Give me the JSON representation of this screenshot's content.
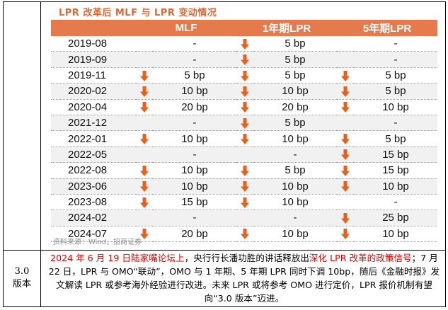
{
  "chart_title": "LPR 改革后 MLF 与 LPR 变动情况",
  "table": {
    "headers": [
      "",
      "MLF",
      "1年期LPR",
      "5年期LPR"
    ],
    "rows": [
      {
        "date": "2019-08",
        "mlf": "-",
        "mlf_down": false,
        "lpr1": "5 bp",
        "lpr1_down": true,
        "lpr5": "-",
        "lpr5_down": false
      },
      {
        "date": "2019-09",
        "mlf": "-",
        "mlf_down": false,
        "lpr1": "5 bp",
        "lpr1_down": true,
        "lpr5": "-",
        "lpr5_down": false
      },
      {
        "date": "2019-11",
        "mlf": "5 bp",
        "mlf_down": true,
        "lpr1": "5 bp",
        "lpr1_down": true,
        "lpr5": "5 bp",
        "lpr5_down": true
      },
      {
        "date": "2020-02",
        "mlf": "10 bp",
        "mlf_down": true,
        "lpr1": "10 bp",
        "lpr1_down": true,
        "lpr5": "5 bp",
        "lpr5_down": true
      },
      {
        "date": "2020-04",
        "mlf": "20 bp",
        "mlf_down": true,
        "lpr1": "20 bp",
        "lpr1_down": true,
        "lpr5": "10 bp",
        "lpr5_down": true
      },
      {
        "date": "2021-12",
        "mlf": "-",
        "mlf_down": false,
        "lpr1": "5 bp",
        "lpr1_down": true,
        "lpr5": "-",
        "lpr5_down": false
      },
      {
        "date": "2022-01",
        "mlf": "10 bp",
        "mlf_down": true,
        "lpr1": "10 bp",
        "lpr1_down": true,
        "lpr5": "5 bp",
        "lpr5_down": true
      },
      {
        "date": "2022-05",
        "mlf": "-",
        "mlf_down": false,
        "lpr1": "-",
        "lpr1_down": false,
        "lpr5": "15 bp",
        "lpr5_down": true
      },
      {
        "date": "2022-08",
        "mlf": "10 bp",
        "mlf_down": true,
        "lpr1": "5 bp",
        "lpr1_down": true,
        "lpr5": "15 bp",
        "lpr5_down": true
      },
      {
        "date": "2023-06",
        "mlf": "10 bp",
        "mlf_down": true,
        "lpr1": "10 bp",
        "lpr1_down": true,
        "lpr5": "10 bp",
        "lpr5_down": true
      },
      {
        "date": "2023-08",
        "mlf": "15 bp",
        "mlf_down": true,
        "lpr1": "10 bp",
        "lpr1_down": true,
        "lpr5": "-",
        "lpr5_down": false
      },
      {
        "date": "2024-02",
        "mlf": "-",
        "mlf_down": false,
        "lpr1": "-",
        "lpr1_down": false,
        "lpr5": "25 bp",
        "lpr5_down": true
      },
      {
        "date": "2024-07",
        "mlf": "20 bp",
        "mlf_down": true,
        "lpr1": "10 bp",
        "lpr1_down": true,
        "lpr5": "10 bp",
        "lpr5_down": true
      }
    ]
  },
  "source": "资料来源：Wind，招商证券",
  "version_label_line1": "3.0",
  "version_label_line2": "版本",
  "description": {
    "red_part1": "2024 年 6 月 19 日陆家嘴论坛上",
    "black_part1": "，央行行长潘功胜的讲话释放出",
    "red_part2": "深化 LPR 改革的政策信号",
    "black_part2": "；7 月 22 日，LPR 与 OMO“联动”，OMO 与 1 年期、5 年期 LPR 同时下调 10bp，随后《金融时报》发文解读 LPR 或参考海外经验进行改进。未来 LPR 或将参考 OMO 进行定价，LPR 报价机制有望向“3.0 版本”迈进。"
  },
  "colors": {
    "header_bg": "#e57a4c",
    "title": "#d96a3b",
    "arrow": "#e8601c",
    "highlight_text": "#e00000",
    "stripe": "#f1f1f1"
  }
}
